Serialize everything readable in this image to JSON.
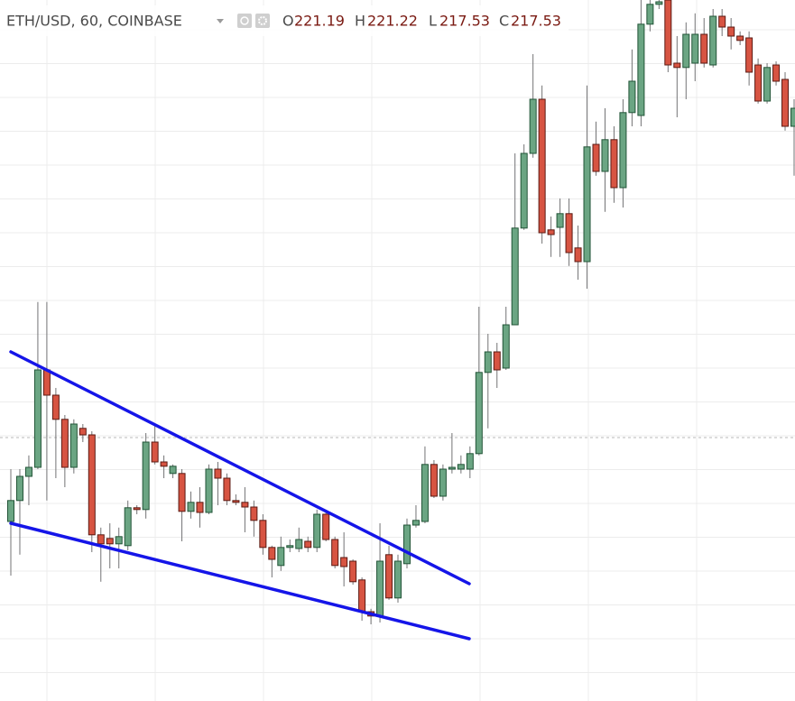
{
  "chart_data": {
    "type": "candlestick",
    "title": "ETH/USD, 60, COINBASE",
    "ohlc_labels": [
      "O",
      "H",
      "L",
      "C"
    ],
    "ohlc_values": [
      221.19,
      221.22,
      217.53,
      217.53
    ],
    "up_color": "#6ba583",
    "down_color": "#d75442",
    "wick_color": "#737375",
    "ylim": [
      201.575,
      221
    ],
    "open": [
      206.55,
      207.13,
      207.8,
      208.05,
      210.75,
      210.05,
      209.38,
      208.05,
      209.13,
      208.95,
      206.18,
      206.08,
      205.93,
      205.88,
      206.93,
      206.88,
      208.75,
      208.2,
      207.88,
      207.88,
      206.83,
      207.08,
      206.8,
      208,
      207.75,
      207.13,
      207.08,
      206.95,
      206.58,
      205.83,
      205.33,
      205.83,
      205.8,
      206,
      205.83,
      206.75,
      206.05,
      205.55,
      205.45,
      204.93,
      204.05,
      203.93,
      205.63,
      204.43,
      205.38,
      206.45,
      206.55,
      208.13,
      207.25,
      208,
      208,
      208,
      208.43,
      210.68,
      211.25,
      210.8,
      212,
      214.68,
      216.75,
      218.25,
      214.63,
      214.7,
      215.08,
      214.13,
      213.75,
      217,
      216.25,
      217.13,
      215.8,
      217.88,
      217.8,
      220.33,
      220.88,
      221,
      219.25,
      219.13,
      219.25,
      220.05,
      219.2,
      220.55,
      220.25,
      220,
      219.95,
      219.2,
      218.2,
      219.2,
      218.8,
      217.5
    ],
    "high": [
      208,
      208,
      208.38,
      212.63,
      212.63,
      210.25,
      209.5,
      209.38,
      209.25,
      209.05,
      206.38,
      206.5,
      206.38,
      207.13,
      207,
      209,
      209.25,
      208.38,
      208.13,
      208,
      207.38,
      207.5,
      208.13,
      208.2,
      207.88,
      207.3,
      207.5,
      207.13,
      206.75,
      205.88,
      206.13,
      206.05,
      206.38,
      206.13,
      206.88,
      206.8,
      206.13,
      206.25,
      205.5,
      205,
      204.13,
      206.5,
      205.88,
      205.63,
      206.63,
      207,
      208.63,
      208.25,
      208.13,
      209,
      208.38,
      208.63,
      212.5,
      211.75,
      211.5,
      212.5,
      216.75,
      217,
      219.5,
      218.63,
      215,
      215.5,
      215.5,
      214.75,
      218.63,
      217.63,
      218,
      217.5,
      218.25,
      219.63,
      221,
      221,
      221,
      221,
      220,
      220.38,
      220.63,
      220.5,
      220.75,
      220.75,
      220.5,
      220.13,
      220.13,
      219.38,
      219.25,
      219.3,
      219,
      218.25
    ],
    "low": [
      205.05,
      205.63,
      207,
      208,
      207.13,
      207.75,
      207.5,
      207.88,
      208.75,
      205.7,
      204.88,
      205.25,
      205.25,
      205.75,
      206.75,
      206.63,
      208.13,
      207.75,
      207.75,
      206,
      206.63,
      206.38,
      206.75,
      207,
      207,
      207,
      206.25,
      206.13,
      205.63,
      205,
      205.18,
      205.7,
      205.7,
      205.7,
      205.7,
      206,
      205.25,
      204.75,
      204.8,
      203.8,
      203.7,
      203.75,
      204.38,
      204.3,
      205.25,
      206.38,
      206.5,
      207.2,
      207.13,
      207.88,
      207.88,
      207.75,
      208.38,
      209.13,
      210.25,
      210.75,
      212,
      214.63,
      216.63,
      214.25,
      213.88,
      213.88,
      213.63,
      213.25,
      213,
      216.13,
      215.13,
      215.38,
      215.25,
      217.5,
      217.5,
      220.13,
      220.75,
      219,
      217.75,
      218.25,
      218.75,
      219.13,
      219.13,
      220,
      219.63,
      219.75,
      218.63,
      218.13,
      218.13,
      218.63,
      217.38,
      216.13
    ],
    "close": [
      207.13,
      207.8,
      208.05,
      210.75,
      210.05,
      209.38,
      208.05,
      209.25,
      208.95,
      206.18,
      205.93,
      205.93,
      206.13,
      206.93,
      206.88,
      208.75,
      208.2,
      208.08,
      208.08,
      206.83,
      207.08,
      206.8,
      208,
      207.75,
      207.13,
      207.08,
      206.95,
      206.58,
      205.83,
      205.5,
      205.83,
      205.88,
      206.05,
      205.83,
      206.75,
      206.05,
      205.33,
      205.3,
      204.88,
      204.05,
      203.93,
      205.45,
      204.43,
      205.45,
      206.45,
      206.58,
      208.13,
      207.25,
      208,
      208.05,
      208.13,
      208.43,
      210.68,
      211.25,
      210.75,
      212,
      214.68,
      216.75,
      218.25,
      214.55,
      214.5,
      215.08,
      214,
      213.75,
      216.93,
      216.25,
      217.13,
      215.8,
      217.88,
      218.75,
      220.33,
      220.88,
      220.95,
      219.2,
      219.13,
      220.05,
      220.05,
      219.25,
      220.55,
      220.25,
      220,
      219.88,
      219,
      218.2,
      219.13,
      218.75,
      217.5,
      218
    ]
  }
}
